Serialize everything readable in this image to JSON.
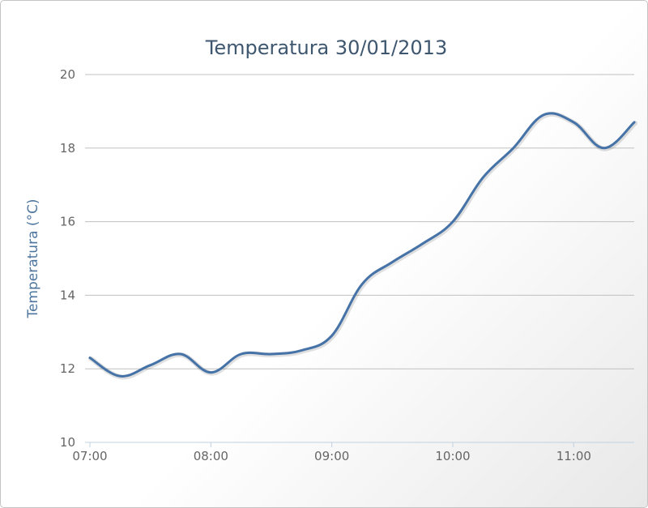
{
  "chart_data": {
    "type": "line",
    "title": "Temperatura 30/01/2013",
    "xlabel": "",
    "ylabel": "Temperatura (°C)",
    "ylim": [
      10,
      20
    ],
    "yticks": [
      10,
      12,
      14,
      16,
      18,
      20
    ],
    "xlim": [
      "07:00",
      "11:30"
    ],
    "xticks": [
      "07:00",
      "08:00",
      "09:00",
      "10:00",
      "11:00"
    ],
    "grid": true,
    "legend": "none",
    "series_color": "#4572a7",
    "series": [
      {
        "x": [
          "07:00",
          "07:15",
          "07:30",
          "07:45",
          "08:00",
          "08:15",
          "08:30",
          "08:45",
          "09:00",
          "09:15",
          "09:30",
          "09:45",
          "10:00",
          "10:15",
          "10:30",
          "10:45",
          "11:00",
          "11:15",
          "11:30"
        ],
        "values": [
          12.3,
          11.8,
          12.1,
          12.4,
          11.9,
          12.4,
          12.4,
          12.5,
          12.9,
          14.3,
          14.9,
          15.4,
          16.0,
          17.2,
          18.0,
          18.9,
          18.7,
          18.0,
          18.7
        ]
      }
    ]
  }
}
